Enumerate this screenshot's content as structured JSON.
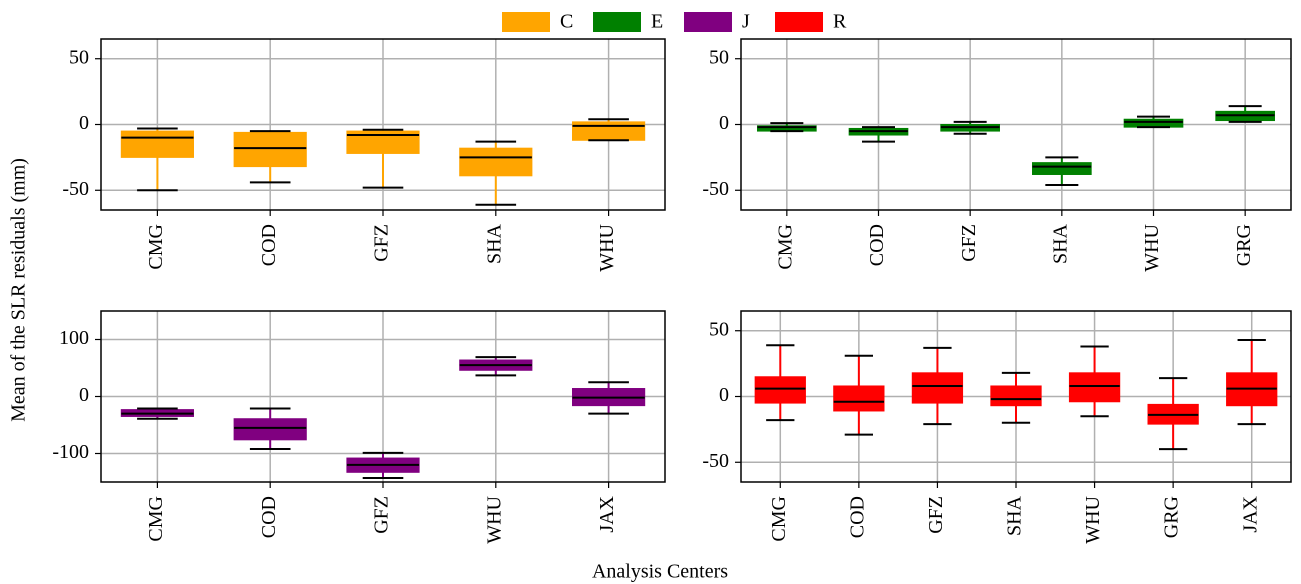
{
  "xlabel": "Analysis Centers",
  "ylabel": "Mean of the SLR residuals (mm)",
  "chart_data": [
    {
      "type": "box",
      "grid": true,
      "ylim": [
        -65,
        65
      ],
      "yticks": [
        -50,
        0,
        50
      ],
      "categories": [
        "CMG",
        "COD",
        "GFZ",
        "SHA",
        "WHU"
      ],
      "series": [
        {
          "name": "C",
          "color": "#ffa500",
          "values": [
            {
              "low": -50,
              "q1": -25,
              "median": -10,
              "q3": -5,
              "high": -3
            },
            {
              "low": -44,
              "q1": -32,
              "median": -18,
              "q3": -6,
              "high": -5
            },
            {
              "low": -48,
              "q1": -22,
              "median": -8,
              "q3": -5,
              "high": -4
            },
            {
              "low": -61,
              "q1": -39,
              "median": -25,
              "q3": -18,
              "high": -13
            },
            {
              "low": -12,
              "q1": -12,
              "median": -1,
              "q3": 2,
              "high": 4
            }
          ]
        }
      ]
    },
    {
      "type": "box",
      "grid": true,
      "ylim": [
        -65,
        65
      ],
      "yticks": [
        -50,
        0,
        50
      ],
      "categories": [
        "CMG",
        "COD",
        "GFZ",
        "SHA",
        "WHU",
        "GRG"
      ],
      "series": [
        {
          "name": "E",
          "color": "#008000",
          "values": [
            {
              "low": -5,
              "q1": -5,
              "median": -2,
              "q3": -1,
              "high": 1
            },
            {
              "low": -13,
              "q1": -8,
              "median": -5,
              "q3": -3,
              "high": -2
            },
            {
              "low": -7,
              "q1": -5,
              "median": -2,
              "q3": 0,
              "high": 2
            },
            {
              "low": -46,
              "q1": -38,
              "median": -32,
              "q3": -29,
              "high": -25
            },
            {
              "low": -2,
              "q1": -2,
              "median": 2,
              "q3": 4,
              "high": 6
            },
            {
              "low": 2,
              "q1": 3,
              "median": 7,
              "q3": 10,
              "high": 14
            }
          ]
        }
      ]
    },
    {
      "type": "box",
      "grid": true,
      "ylim": [
        -150,
        150
      ],
      "yticks": [
        -100,
        0,
        100
      ],
      "categories": [
        "CMG",
        "COD",
        "GFZ",
        "WHU",
        "JAX"
      ],
      "series": [
        {
          "name": "J",
          "color": "#800080",
          "values": [
            {
              "low": -39,
              "q1": -35,
              "median": -30,
              "q3": -23,
              "high": -21
            },
            {
              "low": -92,
              "q1": -76,
              "median": -55,
              "q3": -39,
              "high": -21
            },
            {
              "low": -143,
              "q1": -133,
              "median": -120,
              "q3": -108,
              "high": -99
            },
            {
              "low": 37,
              "q1": 46,
              "median": 55,
              "q3": 64,
              "high": 69
            },
            {
              "low": -30,
              "q1": -16,
              "median": -2,
              "q3": 14,
              "high": 25
            }
          ]
        }
      ]
    },
    {
      "type": "box",
      "grid": true,
      "ylim": [
        -65,
        65
      ],
      "yticks": [
        -50,
        0,
        50
      ],
      "categories": [
        "CMG",
        "COD",
        "GFZ",
        "SHA",
        "WHU",
        "GRG",
        "JAX"
      ],
      "series": [
        {
          "name": "R",
          "color": "#ff0000",
          "values": [
            {
              "low": -18,
              "q1": -5,
              "median": 6,
              "q3": 15,
              "high": 39
            },
            {
              "low": -29,
              "q1": -11,
              "median": -4,
              "q3": 8,
              "high": 31
            },
            {
              "low": -21,
              "q1": -5,
              "median": 8,
              "q3": 18,
              "high": 37
            },
            {
              "low": -20,
              "q1": -7,
              "median": -2,
              "q3": 8,
              "high": 18
            },
            {
              "low": -15,
              "q1": -4,
              "median": 8,
              "q3": 18,
              "high": 38
            },
            {
              "low": -40,
              "q1": -21,
              "median": -14,
              "q3": -6,
              "high": 14
            },
            {
              "low": -21,
              "q1": -7,
              "median": 6,
              "q3": 18,
              "high": 43
            }
          ]
        }
      ]
    }
  ]
}
